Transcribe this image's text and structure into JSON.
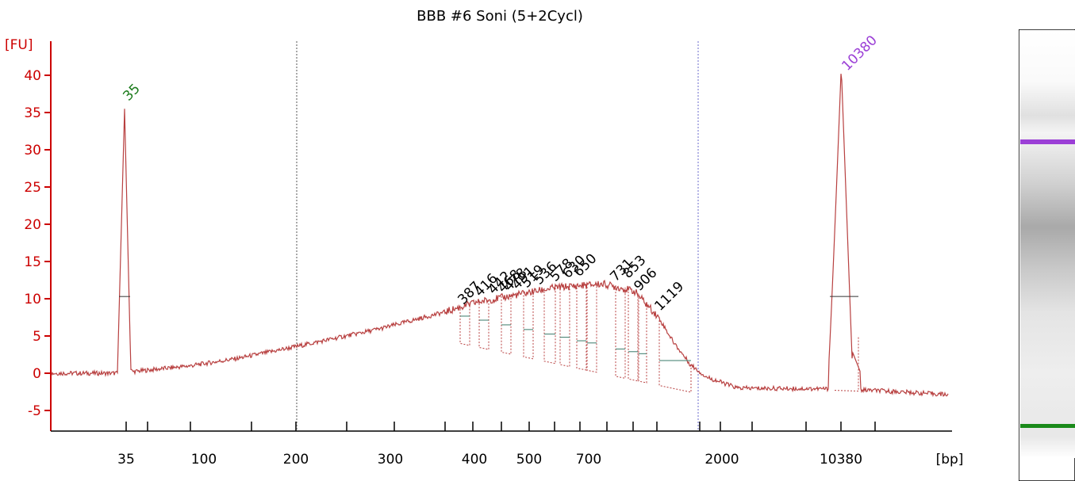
{
  "chart_data": {
    "type": "line",
    "title": "BBB #6 Soni (5+2Cycl)",
    "ylabel": "[FU]",
    "xlabel": "[bp]",
    "ylim": [
      -7,
      44
    ],
    "y_ticks": [
      -5,
      0,
      5,
      10,
      15,
      20,
      25,
      30,
      35,
      40
    ],
    "x_tick_labels": [
      "35",
      "100",
      "200",
      "300",
      "400",
      "500",
      "700",
      "2000",
      "10380"
    ],
    "markers": [
      {
        "label": "35",
        "bp": 35,
        "fu": 35.5,
        "color": "#1a7a1a"
      },
      {
        "label": "10380",
        "bp": 10380,
        "fu": 40.2,
        "color": "#9b3fd6"
      }
    ],
    "peak_labels": [
      "387",
      "416",
      "442",
      "468",
      "478",
      "491",
      "519",
      "536",
      "578",
      "630",
      "650",
      "731",
      "853",
      "906",
      "1119"
    ],
    "colors": {
      "axis": "#cc0000",
      "trace": "#b84040",
      "lower_marker": "#1a8a1a",
      "upper_marker": "#9b3fd6"
    }
  }
}
